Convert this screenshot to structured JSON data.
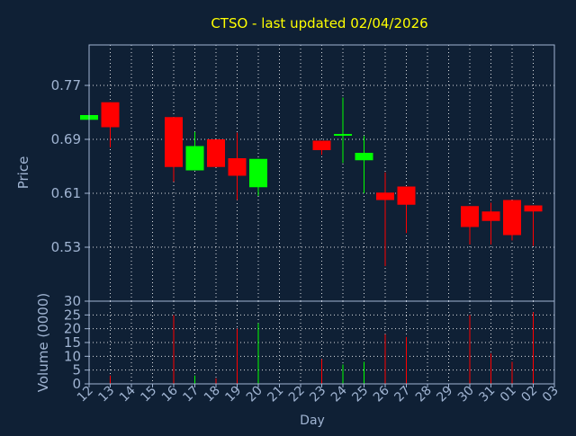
{
  "chart_data": {
    "type": "candlestick",
    "title": "CTSO - last updated 02/04/2026",
    "xlabel": "Day",
    "x_ticks": [
      "12",
      "13",
      "14",
      "15",
      "16",
      "17",
      "18",
      "19",
      "20",
      "21",
      "22",
      "23",
      "24",
      "25",
      "26",
      "27",
      "28",
      "29",
      "30",
      "31",
      "01",
      "02",
      "03"
    ],
    "colors": {
      "background": "#0f2035",
      "plot_area": "#0f2035",
      "title": "#ffff00",
      "axis_text": "#a0b4d2",
      "grid": "#ffffff",
      "up": "#00ff00",
      "down": "#ff0000"
    },
    "price_panel": {
      "ylabel": "Price",
      "ylim": [
        0.45,
        0.83
      ],
      "y_ticks": [
        0.53,
        0.61,
        0.69,
        0.77
      ],
      "y_tick_labels": [
        "0.53",
        "0.61",
        "0.69",
        "0.77"
      ],
      "grid": true,
      "candles": [
        {
          "day": "12",
          "open": 0.719,
          "close": 0.726,
          "high": 0.726,
          "low": 0.719
        },
        {
          "day": "13",
          "open": 0.745,
          "close": 0.708,
          "high": 0.745,
          "low": 0.678
        },
        {
          "day": "16",
          "open": 0.723,
          "close": 0.649,
          "high": 0.723,
          "low": 0.627
        },
        {
          "day": "17",
          "open": 0.644,
          "close": 0.68,
          "high": 0.701,
          "low": 0.644
        },
        {
          "day": "18",
          "open": 0.69,
          "close": 0.649,
          "high": 0.69,
          "low": 0.649
        },
        {
          "day": "19",
          "open": 0.662,
          "close": 0.636,
          "high": 0.7,
          "low": 0.6
        },
        {
          "day": "20",
          "open": 0.619,
          "close": 0.661,
          "high": 0.661,
          "low": 0.606
        },
        {
          "day": "23",
          "open": 0.688,
          "close": 0.674,
          "high": 0.688,
          "low": 0.667
        },
        {
          "day": "24",
          "open": 0.696,
          "close": 0.698,
          "high": 0.752,
          "low": 0.655
        },
        {
          "day": "25",
          "open": 0.659,
          "close": 0.67,
          "high": 0.695,
          "low": 0.61
        },
        {
          "day": "26",
          "open": 0.611,
          "close": 0.6,
          "high": 0.641,
          "low": 0.502
        },
        {
          "day": "27",
          "open": 0.62,
          "close": 0.593,
          "high": 0.62,
          "low": 0.551
        },
        {
          "day": "30",
          "open": 0.591,
          "close": 0.56,
          "high": 0.591,
          "low": 0.534
        },
        {
          "day": "31",
          "open": 0.583,
          "close": 0.569,
          "high": 0.596,
          "low": 0.534
        },
        {
          "day": "01",
          "open": 0.6,
          "close": 0.548,
          "high": 0.6,
          "low": 0.54
        },
        {
          "day": "02",
          "open": 0.592,
          "close": 0.583,
          "high": 0.592,
          "low": 0.532
        }
      ]
    },
    "volume_panel": {
      "ylabel": "Volume (0000)",
      "ylim": [
        0,
        30
      ],
      "y_ticks": [
        0,
        5,
        10,
        15,
        20,
        25,
        30
      ],
      "y_tick_labels": [
        "0",
        "5",
        "10",
        "15",
        "20",
        "25",
        "30"
      ],
      "grid": true,
      "bars": [
        {
          "day": "13",
          "value": 3,
          "dir": "down"
        },
        {
          "day": "16",
          "value": 25,
          "dir": "down"
        },
        {
          "day": "17",
          "value": 3,
          "dir": "up"
        },
        {
          "day": "18",
          "value": 2,
          "dir": "down"
        },
        {
          "day": "19",
          "value": 20,
          "dir": "down"
        },
        {
          "day": "20",
          "value": 22,
          "dir": "up"
        },
        {
          "day": "23",
          "value": 9,
          "dir": "down"
        },
        {
          "day": "24",
          "value": 7,
          "dir": "up"
        },
        {
          "day": "25",
          "value": 8,
          "dir": "up"
        },
        {
          "day": "26",
          "value": 18,
          "dir": "down"
        },
        {
          "day": "27",
          "value": 17,
          "dir": "down"
        },
        {
          "day": "30",
          "value": 25,
          "dir": "down"
        },
        {
          "day": "31",
          "value": 11,
          "dir": "down"
        },
        {
          "day": "01",
          "value": 8,
          "dir": "down"
        },
        {
          "day": "02",
          "value": 26,
          "dir": "down"
        }
      ]
    }
  }
}
